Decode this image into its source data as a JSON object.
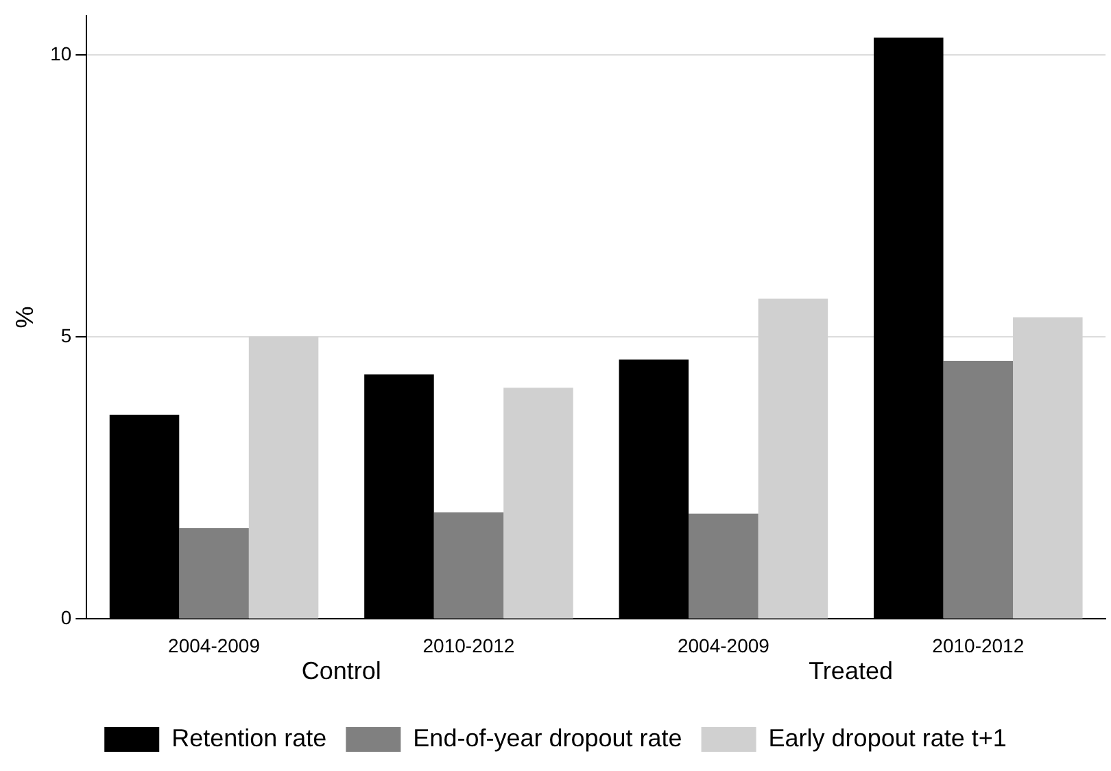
{
  "chart_data": {
    "type": "bar",
    "ylabel": "%",
    "categories": [
      "2004-2009",
      "2010-2012",
      "2004-2009",
      "2010-2012"
    ],
    "series": [
      {
        "name": "Retention rate",
        "color": "#000000",
        "values": [
          3.62,
          4.34,
          4.6,
          10.31
        ]
      },
      {
        "name": "End-of-year dropout rate",
        "color": "#808080",
        "values": [
          1.61,
          1.89,
          1.87,
          4.58
        ]
      },
      {
        "name": "Early dropout rate t+1",
        "color": "#d0d0d0",
        "values": [
          5.01,
          4.1,
          5.68,
          5.35
        ]
      }
    ],
    "ylim": [
      0,
      10.7
    ],
    "yticks": [
      0,
      5,
      10
    ],
    "grid": "y",
    "legend": "bottom",
    "annotations": [
      "Control",
      "Treated"
    ]
  }
}
